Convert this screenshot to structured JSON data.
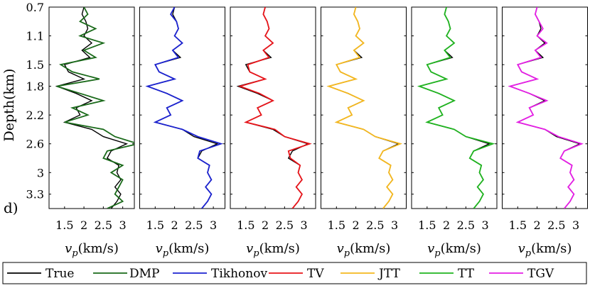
{
  "figure": {
    "panel_letter": "d)",
    "ylabel": "Depth(km)",
    "xlabel_main": "v",
    "xlabel_sub": "p",
    "xlabel_rest": "(km/s)"
  },
  "chart_data": {
    "type": "line",
    "ylim": [
      0.7,
      3.5
    ],
    "xlim": [
      1.1,
      3.3
    ],
    "y_ticks": [
      0.7,
      1.1,
      1.5,
      1.8,
      2.2,
      2.6,
      3,
      3.3
    ],
    "y_tick_labels": [
      "0.7",
      "1.1",
      "1.5",
      "1.8",
      "2.2",
      "2.6",
      "3",
      "3.3"
    ],
    "x_ticks": [
      1.5,
      2,
      2.5,
      3
    ],
    "x_tick_labels": [
      "1.5",
      "2",
      "2.5",
      "3"
    ],
    "grid": false,
    "legend_placement": "bottom",
    "depth": [
      0.7,
      0.8,
      0.9,
      1.0,
      1.1,
      1.2,
      1.3,
      1.4,
      1.5,
      1.6,
      1.7,
      1.8,
      1.9,
      2.0,
      2.1,
      2.2,
      2.3,
      2.4,
      2.5,
      2.6,
      2.7,
      2.8,
      2.9,
      3.0,
      3.1,
      3.2,
      3.3,
      3.4,
      3.5
    ],
    "true_series": {
      "name": "True",
      "color": "#000000",
      "values": [
        2.0,
        1.95,
        2.05,
        2.1,
        2.0,
        2.2,
        1.95,
        2.15,
        1.5,
        1.6,
        2.0,
        1.3,
        1.8,
        2.2,
        1.8,
        1.9,
        1.5,
        2.2,
        2.5,
        3.1,
        2.7,
        2.6,
        2.9,
        2.85,
        2.95,
        2.8,
        2.95,
        2.85,
        2.7
      ]
    },
    "panels": [
      {
        "name": "DMP",
        "color": "#1a6a1a",
        "values": [
          2.0,
          2.1,
          1.9,
          2.3,
          1.9,
          2.5,
          2.0,
          2.3,
          1.4,
          1.7,
          2.4,
          1.3,
          1.9,
          2.5,
          1.7,
          2.1,
          1.5,
          2.5,
          2.8,
          3.4,
          2.6,
          2.5,
          3.0,
          2.7,
          3.0,
          2.9,
          2.8,
          3.0,
          2.6
        ]
      },
      {
        "name": "Tikhonov",
        "color": "#1b22d0",
        "values": [
          2.0,
          1.9,
          2.05,
          2.1,
          2.0,
          2.2,
          1.95,
          2.1,
          1.5,
          1.6,
          2.0,
          1.3,
          1.8,
          2.2,
          1.8,
          1.9,
          1.5,
          2.2,
          2.6,
          3.2,
          2.65,
          2.6,
          2.9,
          2.85,
          2.95,
          2.8,
          2.95,
          2.85,
          2.7
        ]
      },
      {
        "name": "TV",
        "color": "#e8141a",
        "values": [
          2.0,
          1.95,
          2.05,
          2.1,
          2.0,
          2.2,
          1.95,
          2.1,
          1.55,
          1.6,
          2.0,
          1.35,
          1.85,
          2.2,
          1.8,
          1.9,
          1.5,
          2.25,
          2.5,
          3.15,
          2.6,
          2.65,
          2.9,
          2.85,
          2.95,
          2.8,
          2.95,
          2.85,
          2.7
        ]
      },
      {
        "name": "JTT",
        "color": "#f5b81e",
        "values": [
          2.0,
          1.95,
          2.05,
          2.1,
          2.0,
          2.2,
          1.95,
          2.1,
          1.5,
          1.6,
          2.0,
          1.3,
          1.8,
          2.2,
          1.8,
          1.9,
          1.5,
          2.2,
          2.5,
          3.15,
          2.7,
          2.6,
          2.9,
          2.85,
          2.95,
          2.8,
          2.95,
          2.85,
          2.7
        ]
      },
      {
        "name": "TT",
        "color": "#1fb41f",
        "values": [
          2.0,
          1.95,
          2.05,
          2.1,
          2.0,
          2.2,
          1.95,
          2.1,
          1.5,
          1.6,
          2.0,
          1.3,
          1.8,
          2.2,
          1.8,
          1.9,
          1.5,
          2.2,
          2.5,
          3.2,
          2.7,
          2.6,
          2.9,
          2.85,
          2.95,
          2.8,
          2.95,
          2.85,
          2.7
        ]
      },
      {
        "name": "TGV",
        "color": "#e51ee5",
        "values": [
          2.0,
          1.95,
          2.05,
          2.15,
          2.0,
          2.25,
          1.95,
          2.1,
          1.5,
          1.6,
          2.0,
          1.3,
          1.8,
          2.25,
          1.8,
          1.9,
          1.5,
          2.2,
          2.55,
          3.15,
          2.7,
          2.6,
          2.9,
          2.85,
          2.95,
          2.8,
          2.95,
          2.85,
          2.7
        ]
      }
    ],
    "legend": [
      "True",
      "DMP",
      "Tikhonov",
      "TV",
      "JTT",
      "TT",
      "TGV"
    ]
  }
}
